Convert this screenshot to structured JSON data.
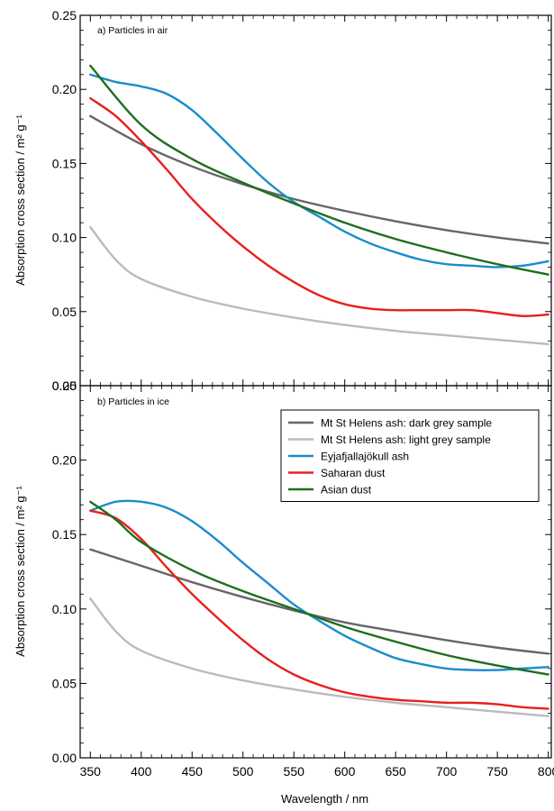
{
  "chart_data": [
    {
      "type": "line",
      "panel_label": "a) Particles in air",
      "xlabel": "",
      "ylabel": "Absorption cross section / m² g⁻¹",
      "xlim": [
        340,
        803
      ],
      "ylim": [
        0,
        0.25
      ],
      "grid": false,
      "legend": false,
      "yticks": [
        "0.00",
        "0.05",
        "0.10",
        "0.15",
        "0.20",
        "0.25"
      ],
      "series": [
        {
          "name": "Mt St Helens ash: dark grey sample",
          "color": "#666666",
          "x": [
            350,
            400,
            450,
            500,
            550,
            600,
            650,
            700,
            750,
            800
          ],
          "y": [
            0.182,
            0.163,
            0.148,
            0.136,
            0.126,
            0.118,
            0.111,
            0.105,
            0.1,
            0.096
          ]
        },
        {
          "name": "Mt St Helens ash: light grey sample",
          "color": "#bbbbbb",
          "x": [
            350,
            375,
            400,
            450,
            500,
            550,
            600,
            650,
            700,
            750,
            800
          ],
          "y": [
            0.107,
            0.085,
            0.072,
            0.06,
            0.052,
            0.046,
            0.041,
            0.037,
            0.034,
            0.031,
            0.028
          ]
        },
        {
          "name": "Eyjafjallajökull ash",
          "color": "#1a8ccc",
          "x": [
            350,
            375,
            400,
            425,
            450,
            475,
            500,
            525,
            550,
            575,
            600,
            625,
            650,
            675,
            700,
            725,
            750,
            775,
            800
          ],
          "y": [
            0.21,
            0.205,
            0.202,
            0.197,
            0.186,
            0.17,
            0.153,
            0.137,
            0.124,
            0.114,
            0.104,
            0.096,
            0.09,
            0.085,
            0.082,
            0.081,
            0.08,
            0.081,
            0.084
          ]
        },
        {
          "name": "Saharan dust",
          "color": "#e8201c",
          "x": [
            350,
            375,
            400,
            425,
            450,
            475,
            500,
            525,
            550,
            575,
            600,
            625,
            650,
            675,
            700,
            725,
            750,
            775,
            800
          ],
          "y": [
            0.194,
            0.182,
            0.165,
            0.146,
            0.126,
            0.109,
            0.094,
            0.081,
            0.07,
            0.061,
            0.055,
            0.052,
            0.051,
            0.051,
            0.051,
            0.051,
            0.049,
            0.047,
            0.048
          ]
        },
        {
          "name": "Asian dust",
          "color": "#1f6e1f",
          "x": [
            350,
            400,
            450,
            500,
            550,
            600,
            650,
            700,
            750,
            800
          ],
          "y": [
            0.216,
            0.176,
            0.153,
            0.137,
            0.123,
            0.11,
            0.099,
            0.09,
            0.082,
            0.075
          ]
        }
      ]
    },
    {
      "type": "line",
      "panel_label": "b) Particles in ice",
      "xlabel": "Wavelength / nm",
      "ylabel": "Absorption cross section / m² g⁻¹",
      "xlim": [
        340,
        803
      ],
      "ylim": [
        0,
        0.25
      ],
      "grid": false,
      "legend": "top-right",
      "xticks": [
        "350",
        "400",
        "450",
        "500",
        "550",
        "600",
        "650",
        "700",
        "750",
        "800"
      ],
      "yticks": [
        "0.00",
        "0.05",
        "0.10",
        "0.15",
        "0.20",
        "0.25"
      ],
      "series": [
        {
          "name": "Mt St Helens ash: dark grey sample",
          "color": "#666666",
          "x": [
            350,
            400,
            450,
            500,
            550,
            600,
            650,
            700,
            750,
            800
          ],
          "y": [
            0.14,
            0.129,
            0.118,
            0.108,
            0.099,
            0.091,
            0.085,
            0.079,
            0.074,
            0.07
          ]
        },
        {
          "name": "Mt St Helens ash: light grey sample",
          "color": "#bbbbbb",
          "x": [
            350,
            375,
            400,
            450,
            500,
            550,
            600,
            650,
            700,
            750,
            800
          ],
          "y": [
            0.107,
            0.085,
            0.072,
            0.06,
            0.052,
            0.046,
            0.041,
            0.037,
            0.034,
            0.031,
            0.028
          ]
        },
        {
          "name": "Eyjafjallajökull ash",
          "color": "#1a8ccc",
          "x": [
            350,
            375,
            400,
            425,
            450,
            475,
            500,
            525,
            550,
            575,
            600,
            625,
            650,
            675,
            700,
            725,
            750,
            775,
            800
          ],
          "y": [
            0.166,
            0.172,
            0.172,
            0.168,
            0.159,
            0.146,
            0.131,
            0.117,
            0.103,
            0.092,
            0.082,
            0.074,
            0.067,
            0.063,
            0.06,
            0.059,
            0.059,
            0.06,
            0.061
          ]
        },
        {
          "name": "Saharan dust",
          "color": "#e8201c",
          "x": [
            350,
            375,
            400,
            425,
            450,
            475,
            500,
            525,
            550,
            575,
            600,
            625,
            650,
            675,
            700,
            725,
            750,
            775,
            800
          ],
          "y": [
            0.166,
            0.161,
            0.147,
            0.128,
            0.11,
            0.094,
            0.079,
            0.066,
            0.056,
            0.049,
            0.044,
            0.041,
            0.039,
            0.038,
            0.037,
            0.037,
            0.036,
            0.034,
            0.033
          ]
        },
        {
          "name": "Asian dust",
          "color": "#1f6e1f",
          "x": [
            350,
            375,
            400,
            450,
            500,
            550,
            600,
            650,
            700,
            750,
            800
          ],
          "y": [
            0.172,
            0.16,
            0.145,
            0.126,
            0.112,
            0.1,
            0.088,
            0.078,
            0.069,
            0.062,
            0.056
          ]
        }
      ]
    }
  ]
}
